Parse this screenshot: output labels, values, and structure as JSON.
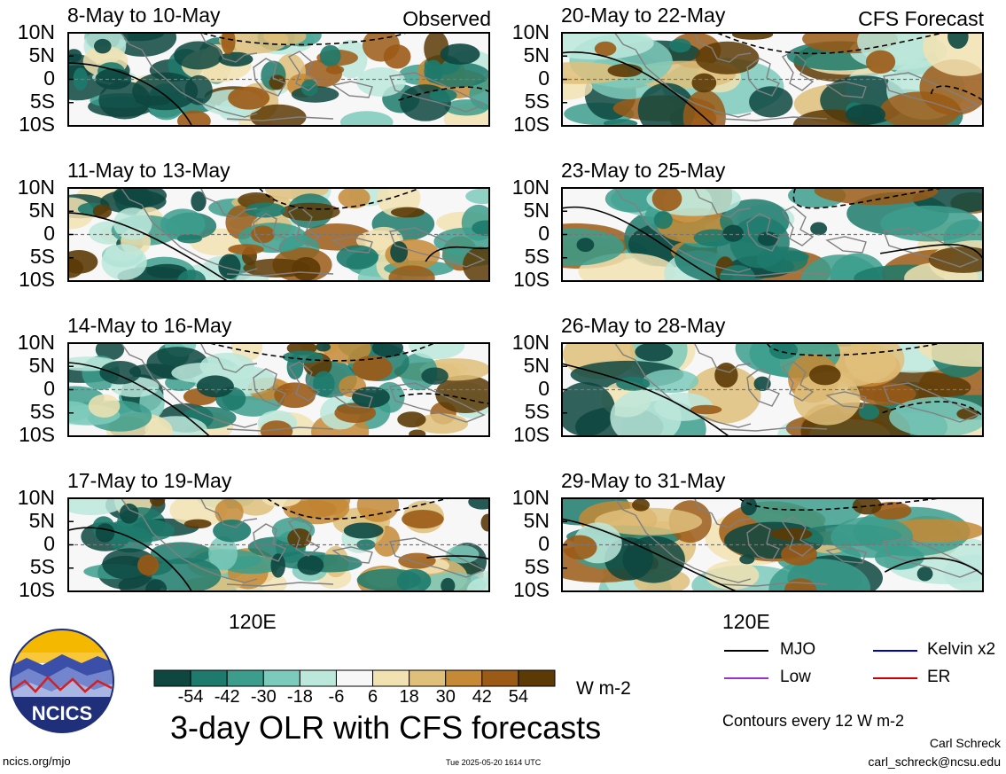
{
  "panels": [
    {
      "title": "8-May to 10-May",
      "tag": "Observed",
      "source": "obs"
    },
    {
      "title": "11-May to 13-May",
      "tag": "",
      "source": "obs"
    },
    {
      "title": "14-May to 16-May",
      "tag": "",
      "source": "obs"
    },
    {
      "title": "17-May to 19-May",
      "tag": "",
      "source": "obs"
    },
    {
      "title": "20-May to 22-May",
      "tag": "CFS Forecast",
      "source": "fcst"
    },
    {
      "title": "23-May to 25-May",
      "tag": "",
      "source": "fcst"
    },
    {
      "title": "26-May to 28-May",
      "tag": "",
      "source": "fcst"
    },
    {
      "title": "29-May to 31-May",
      "tag": "",
      "source": "fcst"
    }
  ],
  "lat_labels": [
    "10N",
    "5N",
    "0",
    "5S",
    "10S"
  ],
  "lon_label": "120E",
  "colorbar": {
    "ticks": [
      "-54",
      "-42",
      "-30",
      "-18",
      "-6",
      "6",
      "18",
      "30",
      "42",
      "54"
    ],
    "colors": [
      "#0d4740",
      "#1d7a6c",
      "#3c9d8d",
      "#7ccabb",
      "#bce8dc",
      "#f7f7f7",
      "#f2e2b1",
      "#dfc07b",
      "#c68a36",
      "#9b5a16",
      "#5c3a06"
    ],
    "units": "W m-2"
  },
  "legend": [
    {
      "label": "MJO",
      "color": "#000000"
    },
    {
      "label": "Kelvin x2",
      "color": "#0000cc"
    },
    {
      "label": "Low",
      "color": "#9933cc"
    },
    {
      "label": "ER",
      "color": "#cc0000"
    }
  ],
  "contours_note": "Contours every 12 W m-2",
  "main_title": "3-day OLR with CFS forecasts",
  "site": "ncics.org/mjo",
  "timestamp": "Tue 2025-05-20 1614 UTC",
  "author": "Carl Schreck",
  "email": "carl_schreck@ncsu.edu",
  "logo_text": "NCICS"
}
